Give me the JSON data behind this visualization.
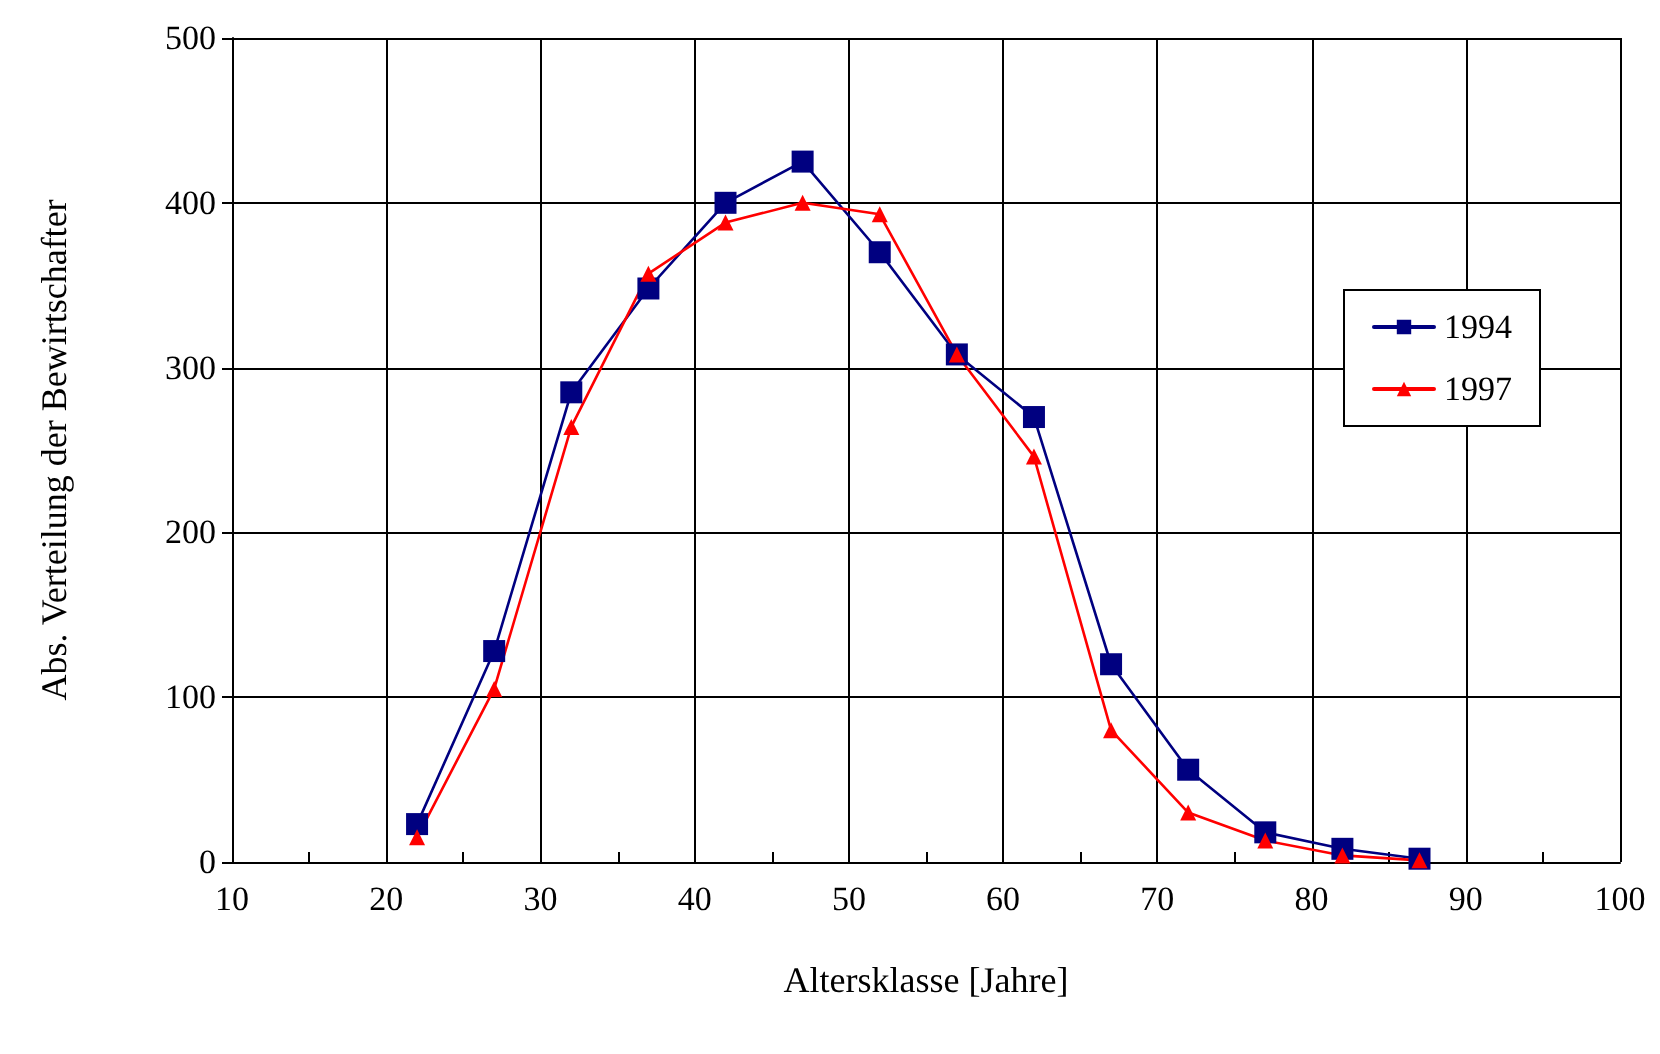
{
  "chart_data": {
    "type": "line",
    "xlabel": "Altersklasse [Jahre]",
    "ylabel": "Abs. Verteilung der Bewirtschafter",
    "x": [
      22,
      27,
      32,
      37,
      42,
      47,
      52,
      57,
      62,
      67,
      72,
      77,
      82,
      87
    ],
    "series": [
      {
        "name": "1994",
        "color": "#000080",
        "marker": "square",
        "values": [
          23,
          128,
          285,
          348,
          400,
          425,
          370,
          308,
          270,
          120,
          56,
          18,
          8,
          2
        ]
      },
      {
        "name": "1997",
        "color": "#ff0000",
        "marker": "triangle",
        "values": [
          15,
          105,
          264,
          357,
          388,
          400,
          393,
          308,
          246,
          80,
          30,
          13,
          4,
          1
        ]
      }
    ],
    "xlim": [
      10,
      100
    ],
    "xticks": [
      10,
      {
        "value": 15,
        "label": null
      },
      20,
      {
        "value": 25,
        "label": null
      },
      30,
      {
        "value": 35,
        "label": null
      },
      40,
      {
        "value": 45,
        "label": null
      },
      50,
      {
        "value": 55,
        "label": null
      },
      60,
      {
        "value": 65,
        "label": null
      },
      70,
      {
        "value": 75,
        "label": null
      },
      80,
      {
        "value": 85,
        "label": null
      },
      90,
      {
        "value": 95,
        "label": null
      },
      100
    ],
    "ylim": [
      0,
      500
    ],
    "yticks": [
      0,
      100,
      200,
      300,
      400,
      500
    ],
    "grid": true,
    "legend": "right",
    "line_style": "solid"
  }
}
